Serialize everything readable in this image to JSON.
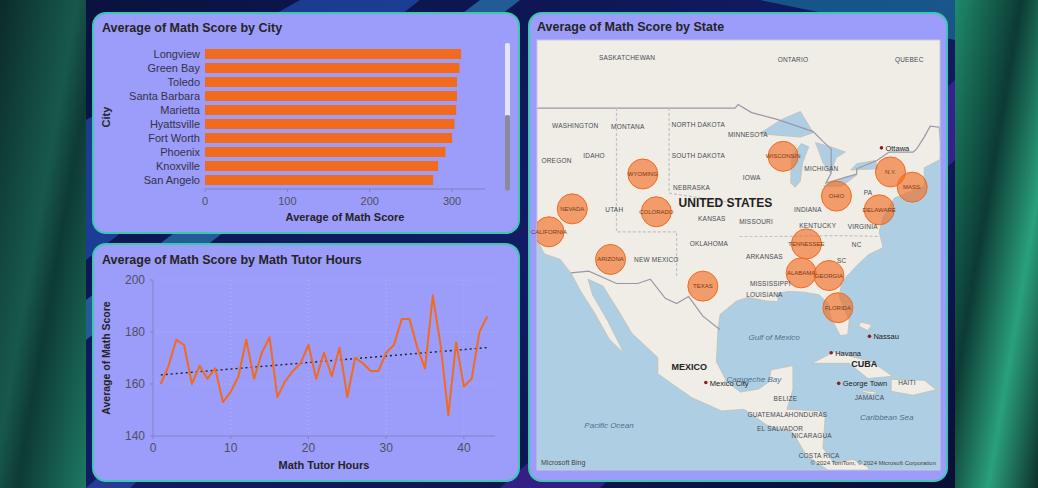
{
  "chart_data": [
    {
      "type": "bar",
      "orientation": "horizontal",
      "title": "Average of Math Score by City",
      "xlabel": "Average of Math Score",
      "ylabel": "City",
      "categories": [
        "Longview",
        "Green Bay",
        "Toledo",
        "Santa Barbara",
        "Marietta",
        "Hyattsville",
        "Fort Worth",
        "Phoenix",
        "Knoxville",
        "San Angelo"
      ],
      "values": [
        311,
        309,
        306,
        306,
        305,
        303,
        300,
        292,
        283,
        277
      ],
      "color": "#f26b1d",
      "xlim": [
        0,
        340
      ],
      "xticks": [
        0,
        100,
        200,
        300
      ],
      "grid": false
    },
    {
      "type": "line",
      "title": "Average of Math Score by Math Tutor Hours",
      "xlabel": "Math Tutor Hours",
      "ylabel": "Average of Math Score",
      "x": [
        1,
        2,
        3,
        4,
        5,
        6,
        7,
        8,
        9,
        10,
        11,
        12,
        13,
        14,
        15,
        16,
        17,
        18,
        19,
        20,
        21,
        22,
        23,
        24,
        25,
        26,
        27,
        28,
        29,
        30,
        31,
        32,
        33,
        34,
        35,
        36,
        37,
        38,
        39,
        40,
        41,
        42,
        43
      ],
      "values": [
        160,
        167,
        177,
        175,
        160,
        167,
        162,
        166,
        153,
        157,
        163,
        177,
        162,
        172,
        178,
        155,
        161,
        165,
        168,
        175,
        162,
        172,
        163,
        174,
        155,
        170,
        168,
        165,
        165,
        172,
        175,
        185,
        185,
        174,
        166,
        194,
        175,
        148,
        176,
        159,
        162,
        180,
        186
      ],
      "color": "#f26b1d",
      "xlim": [
        0,
        44
      ],
      "ylim": [
        140,
        200
      ],
      "xticks": [
        0,
        10,
        20,
        30,
        40
      ],
      "yticks": [
        140,
        160,
        180,
        200
      ],
      "grid": true,
      "trend": {
        "x": [
          1,
          43
        ],
        "values": [
          163.5,
          174
        ],
        "color": "#222222",
        "line_style": "dotted"
      }
    },
    {
      "type": "map",
      "title": "Average of Math Score by State",
      "xlim": [
        -121.6,
        -67.9
      ],
      "ylim": [
        8.1,
        54.6
      ],
      "color": "#f26b1d",
      "marker": "circle",
      "points": {
        "labels": [
          "CALIFORNIA",
          "NEVADA",
          "WYOMING",
          "COLORADO",
          "ARIZONA",
          "TEXAS",
          "WISCONSIN",
          "OHIO",
          "TENNESSEE",
          "ALABAMA",
          "GEORGIA",
          "FLORIDA",
          "N.Y.",
          "MASS.",
          "DELAWARE"
        ],
        "lon": [
          -120.0,
          -116.9,
          -107.5,
          -105.7,
          -111.8,
          -99.5,
          -88.8,
          -81.7,
          -85.7,
          -86.4,
          -82.7,
          -81.5,
          -74.5,
          -71.6,
          -76.0
        ],
        "lat": [
          37.0,
          39.4,
          42.9,
          39.1,
          34.0,
          31.0,
          44.6,
          40.7,
          35.7,
          32.5,
          32.2,
          28.5,
          43.1,
          41.6,
          39.3
        ]
      },
      "regions": [
        {
          "label": "SASKATCHEWAN",
          "lon": -109.6,
          "lat": 53.2
        },
        {
          "label": "ONTARIO",
          "lon": -87.5,
          "lat": 53.0
        },
        {
          "label": "QUEBEC",
          "lon": -72.0,
          "lat": 53.0
        },
        {
          "label": "WASHINGTON",
          "lon": -116.5,
          "lat": 47.4
        },
        {
          "label": "MONTANA",
          "lon": -109.5,
          "lat": 47.3
        },
        {
          "label": "NORTH DAKOTA",
          "lon": -100.1,
          "lat": 47.5
        },
        {
          "label": "MINNESOTA",
          "lon": -93.5,
          "lat": 46.6
        },
        {
          "label": "OREGON",
          "lon": -119.0,
          "lat": 44.2
        },
        {
          "label": "IDAHO",
          "lon": -114.0,
          "lat": 44.6
        },
        {
          "label": "SOUTH DAKOTA",
          "lon": -100.1,
          "lat": 44.6
        },
        {
          "label": "MICHIGAN",
          "lon": -83.7,
          "lat": 43.4
        },
        {
          "label": "IOWA",
          "lon": -93.0,
          "lat": 42.5
        },
        {
          "label": "NEBRASKA",
          "lon": -101.0,
          "lat": 41.5
        },
        {
          "label": "PA",
          "lon": -77.5,
          "lat": 41.0
        },
        {
          "label": "UTAH",
          "lon": -111.3,
          "lat": 39.3
        },
        {
          "label": "INDIANA",
          "lon": -85.5,
          "lat": 39.3
        },
        {
          "label": "KANSAS",
          "lon": -98.3,
          "lat": 38.3
        },
        {
          "label": "MISSOURI",
          "lon": -92.4,
          "lat": 38.0
        },
        {
          "label": "KENTUCKY",
          "lon": -84.2,
          "lat": 37.6
        },
        {
          "label": "VIRGINIA",
          "lon": -78.2,
          "lat": 37.5
        },
        {
          "label": "OKLAHOMA",
          "lon": -98.7,
          "lat": 35.7
        },
        {
          "label": "NC",
          "lon": -79.0,
          "lat": 35.6
        },
        {
          "label": "ARKANSAS",
          "lon": -91.3,
          "lat": 34.3
        },
        {
          "label": "SC",
          "lon": -81.0,
          "lat": 33.8
        },
        {
          "label": "NEW MEXICO",
          "lon": -105.7,
          "lat": 33.9
        },
        {
          "label": "MISSISSIPPI",
          "lon": -90.5,
          "lat": 31.2
        },
        {
          "label": "LOUISIANA",
          "lon": -91.3,
          "lat": 30.0
        },
        {
          "label": "BELIZE",
          "lon": -88.5,
          "lat": 17.3
        },
        {
          "label": "JAMAICA",
          "lon": -77.3,
          "lat": 17.4
        },
        {
          "label": "HAITI",
          "lon": -72.3,
          "lat": 19.3
        },
        {
          "label": "GUATEMALA",
          "lon": -90.8,
          "lat": 15.3
        },
        {
          "label": "HONDURAS",
          "lon": -85.5,
          "lat": 15.3
        },
        {
          "label": "EL SALVADOR",
          "lon": -89.2,
          "lat": 13.5
        },
        {
          "label": "NICARAGUA",
          "lon": -85.0,
          "lat": 12.5
        },
        {
          "label": "COSTA RICA",
          "lon": -84.0,
          "lat": 10.0
        }
      ],
      "countries": [
        {
          "label": "UNITED STATES",
          "lon": -96.5,
          "lat": 40.0
        },
        {
          "label": "MEXICO",
          "lon": -101.3,
          "lat": 21.5
        },
        {
          "label": "CUBA",
          "lon": -78.0,
          "lat": 21.8
        }
      ],
      "water": [
        {
          "label": "Gulf of Mexico",
          "lon": -90.0,
          "lat": 25.0
        },
        {
          "label": "Campeche Bay",
          "lon": -92.7,
          "lat": 19.9
        },
        {
          "label": "Caribbean Sea",
          "lon": -75.0,
          "lat": 15.0
        },
        {
          "label": "Pacific Ocean",
          "lon": -112.0,
          "lat": 14.0
        }
      ],
      "cities": [
        {
          "label": "Ottawa",
          "lon": -75.7,
          "lat": 45.4
        },
        {
          "label": "Mexico City",
          "lon": -99.1,
          "lat": 19.4
        },
        {
          "label": "Havana",
          "lon": -82.4,
          "lat": 23.1
        },
        {
          "label": "Nassau",
          "lon": -77.3,
          "lat": 25.1
        },
        {
          "label": "George Town",
          "lon": -81.4,
          "lat": 19.3
        }
      ],
      "attribution": [
        "Microsoft Bing",
        "© 2024 TomTom, © 2024 Microsoft Corporation"
      ]
    }
  ]
}
